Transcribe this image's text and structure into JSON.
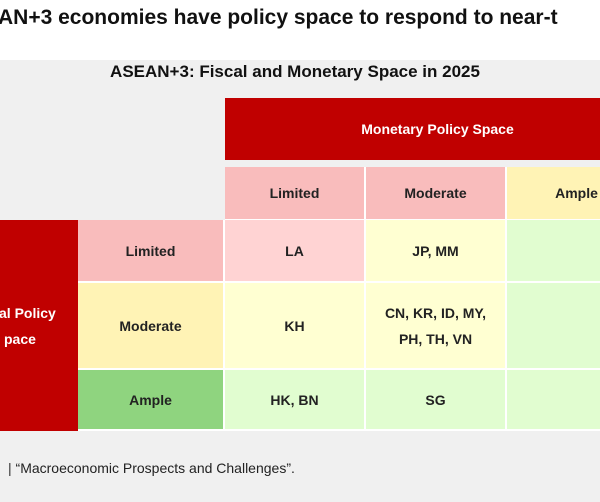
{
  "header": {
    "title": "AN+3 economies have policy space to respond to near-t"
  },
  "table": {
    "title": "ASEAN+3: Fiscal and Monetary Space in 2025",
    "column_group": "Monetary Policy Space",
    "row_group": [
      "al Policy",
      "pace"
    ],
    "columns": [
      "Limited",
      "Moderate",
      "Ample"
    ],
    "rows": [
      {
        "label": "Limited",
        "cells": [
          [
            "LA"
          ],
          [
            "JP, MM"
          ]
        ]
      },
      {
        "label": "Moderate",
        "cells": [
          [
            "KH"
          ],
          [
            "CN, KR, ID, MY,",
            "PH, TH, VN"
          ]
        ]
      },
      {
        "label": "Ample",
        "cells": [
          [
            "HK, BN"
          ],
          [
            "SG"
          ]
        ]
      }
    ]
  },
  "footnote": "“Macroeconomic Prospects and Challenges”."
}
